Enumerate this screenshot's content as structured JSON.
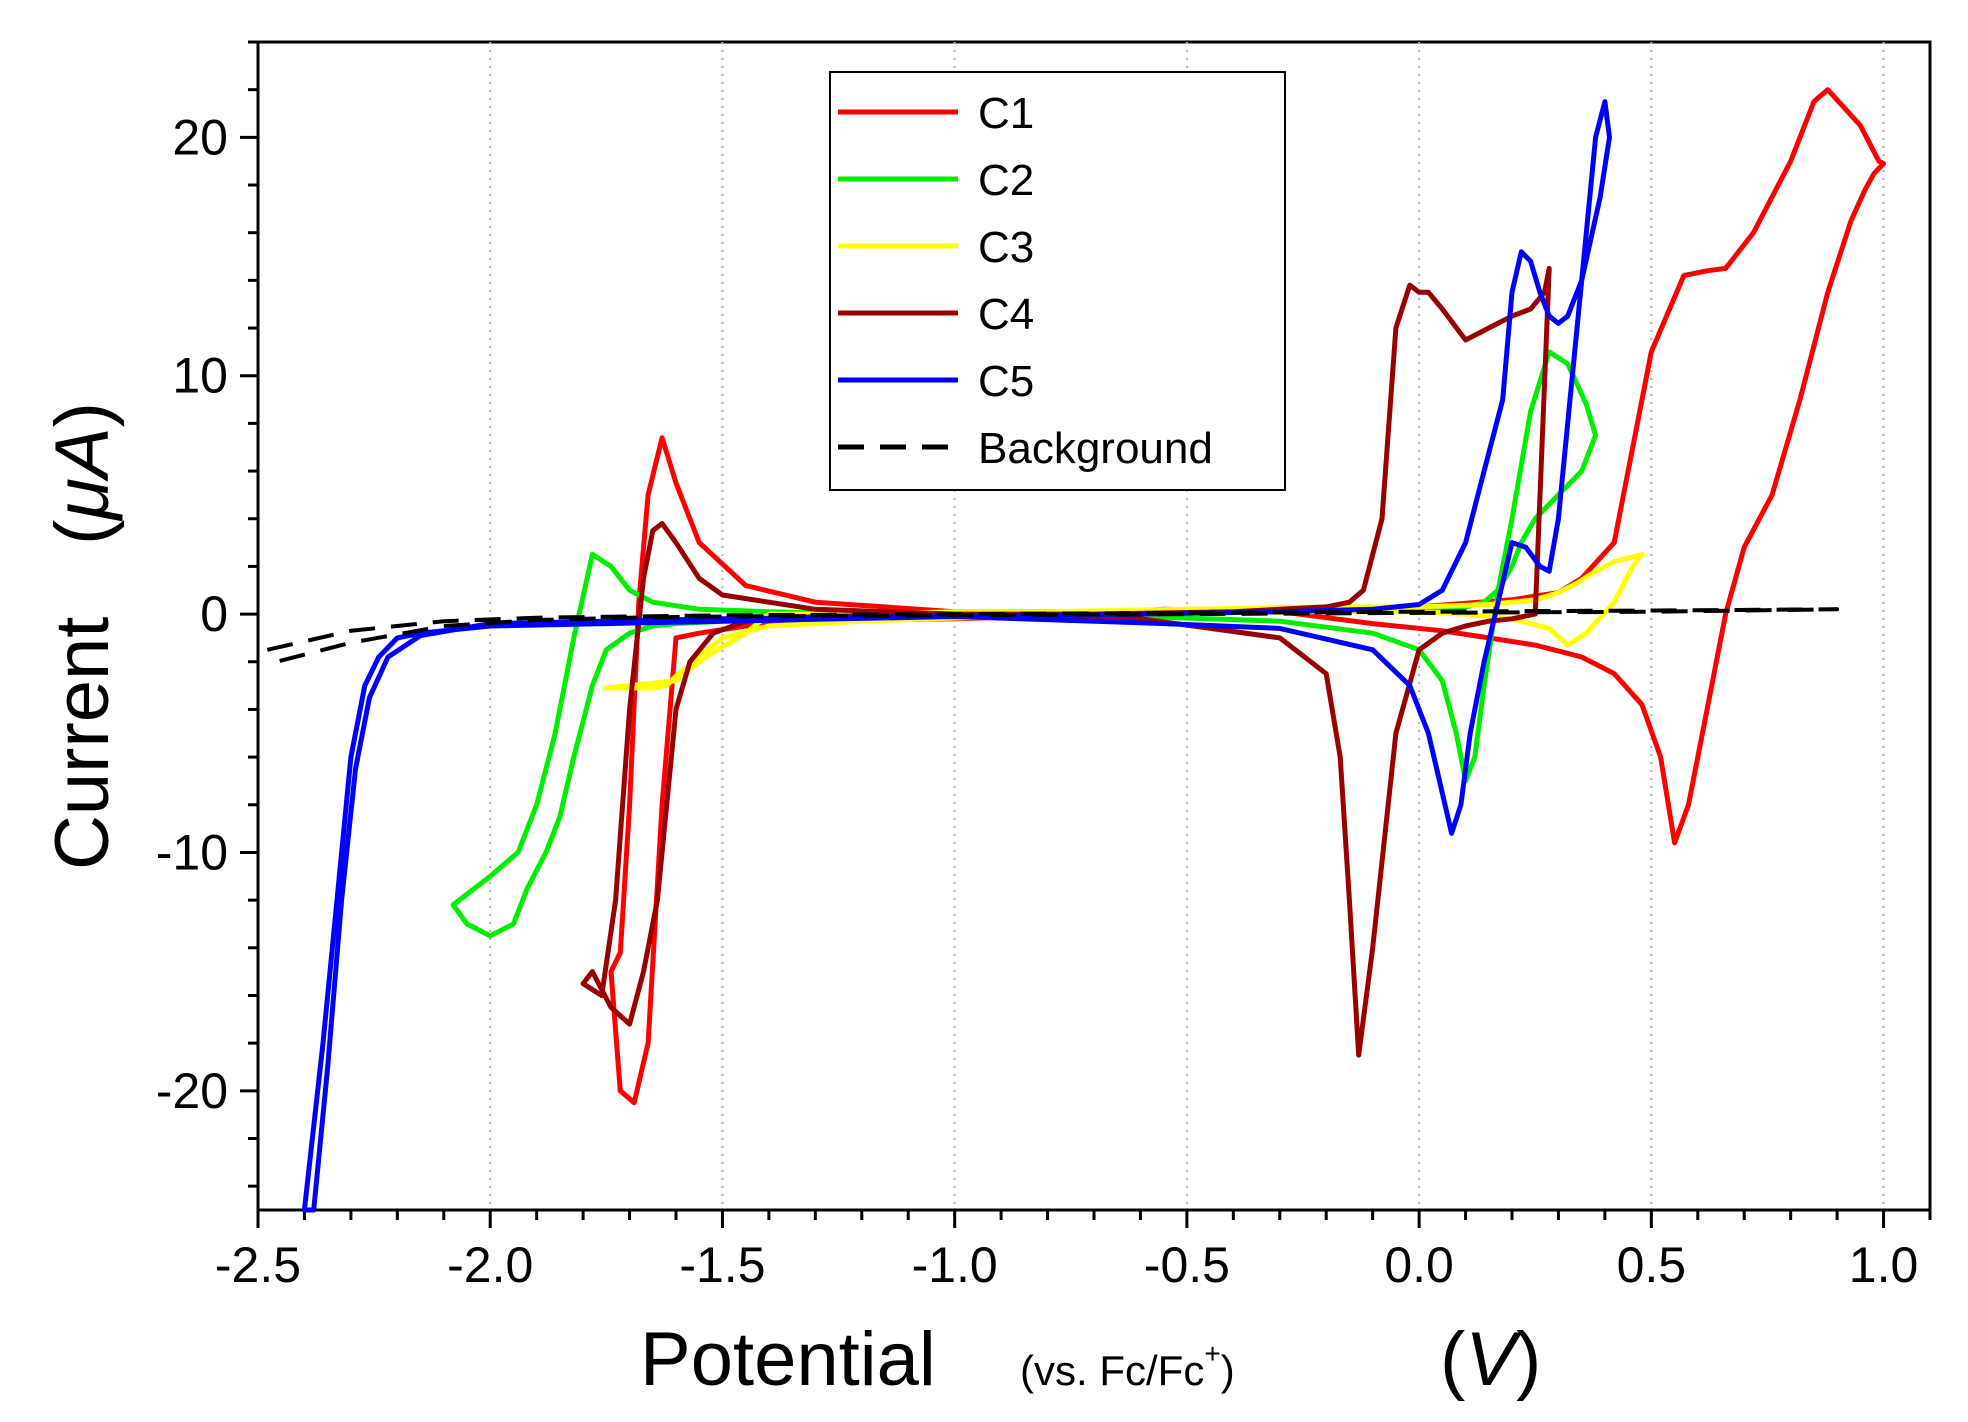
{
  "chart_data": {
    "type": "line",
    "title": "",
    "xlabel": {
      "main": "Potential",
      "ref": "vs. Fc/Fc",
      "ref_sup": "+",
      "unit": "V"
    },
    "ylabel": {
      "main": "Current",
      "unit": "μA"
    },
    "xlim": [
      -2.5,
      1.1
    ],
    "ylim": [
      -25,
      24
    ],
    "xticks": [
      -2.5,
      -2.0,
      -1.5,
      -1.0,
      -0.5,
      0.0,
      0.5,
      1.0
    ],
    "xtick_labels": [
      "-2.5",
      "-2.0",
      "-1.5",
      "-1.0",
      "-0.5",
      "0.0",
      "0.5",
      "1.0"
    ],
    "yticks": [
      -20,
      -10,
      0,
      10,
      20
    ],
    "ytick_labels": [
      "-20",
      "-10",
      "0",
      "10",
      "20"
    ],
    "grid": "vertical dotted",
    "legend_position": "top-center",
    "series": [
      {
        "name": "C1",
        "color": "#ff0000",
        "dash": "solid",
        "x": [
          -0.55,
          -0.3,
          -0.1,
          0.05,
          0.15,
          0.25,
          0.35,
          0.42,
          0.48,
          0.52,
          0.55,
          0.58,
          0.62,
          0.66,
          0.7,
          0.76,
          0.82,
          0.88,
          0.93,
          0.96,
          0.98,
          1.0,
          0.99,
          0.95,
          0.88,
          0.85,
          0.8,
          0.72,
          0.66,
          0.62,
          0.57,
          0.5,
          0.42,
          0.35,
          0.3,
          0.2,
          0.0,
          -0.3,
          -0.7,
          -1.0,
          -1.3,
          -1.45,
          -1.55,
          -1.6,
          -1.63,
          -1.66,
          -1.68,
          -1.7,
          -1.72,
          -1.74,
          -1.72,
          -1.69,
          -1.66,
          -1.63,
          -1.6,
          -1.55,
          -1.45,
          -1.3,
          -1.0,
          -0.7,
          -0.55
        ],
        "y": [
          0.2,
          0.1,
          -0.4,
          -0.7,
          -1.0,
          -1.3,
          -1.8,
          -2.5,
          -3.8,
          -6.0,
          -9.6,
          -8.0,
          -4.0,
          0.0,
          2.8,
          5.0,
          9.0,
          13.5,
          16.5,
          17.8,
          18.5,
          18.9,
          19.0,
          20.5,
          22.0,
          21.5,
          19.0,
          16.0,
          14.5,
          14.4,
          14.2,
          11.0,
          3.0,
          1.5,
          0.9,
          0.6,
          0.3,
          0.2,
          0.1,
          0.1,
          0.5,
          1.2,
          3.0,
          5.5,
          7.4,
          5.0,
          0.5,
          -8.0,
          -14.2,
          -15.0,
          -20.0,
          -20.5,
          -18.0,
          -8.0,
          -1.0,
          -0.8,
          -0.5,
          -0.3,
          -0.2,
          0.0,
          0.2
        ]
      },
      {
        "name": "C2",
        "color": "#00ee00",
        "dash": "solid",
        "x": [
          -0.6,
          -0.3,
          -0.1,
          0.0,
          0.05,
          0.08,
          0.1,
          0.12,
          0.14,
          0.17,
          0.2,
          0.24,
          0.28,
          0.32,
          0.36,
          0.38,
          0.35,
          0.3,
          0.25,
          0.22,
          0.2,
          0.17,
          0.14,
          0.1,
          0.0,
          -0.3,
          -0.7,
          -1.0,
          -1.3,
          -1.5,
          -1.6,
          -1.65,
          -1.7,
          -1.75,
          -1.78,
          -1.82,
          -1.85,
          -1.88,
          -1.92,
          -1.95,
          -2.0,
          -2.05,
          -2.08,
          -2.0,
          -1.94,
          -1.9,
          -1.86,
          -1.82,
          -1.78,
          -1.74,
          -1.7,
          -1.65,
          -1.55,
          -1.4,
          -1.2,
          -1.0,
          -0.6
        ],
        "y": [
          -0.1,
          -0.3,
          -0.8,
          -1.5,
          -2.8,
          -5.0,
          -7.0,
          -6.0,
          -3.0,
          1.0,
          4.0,
          8.5,
          11.0,
          10.5,
          8.8,
          7.5,
          6.0,
          5.0,
          4.0,
          3.0,
          2.0,
          1.0,
          0.5,
          0.3,
          0.2,
          0.1,
          0.0,
          -0.1,
          -0.2,
          -0.3,
          -0.4,
          -0.5,
          -0.8,
          -1.5,
          -3.0,
          -6.0,
          -8.5,
          -10.0,
          -11.5,
          -13.0,
          -13.5,
          -13.0,
          -12.2,
          -11.0,
          -10.0,
          -8.0,
          -5.0,
          -1.0,
          2.5,
          2.0,
          1.0,
          0.5,
          0.2,
          0.1,
          0.0,
          0.0,
          -0.1
        ]
      },
      {
        "name": "C3",
        "color": "#ffff00",
        "dash": "solid",
        "x": [
          -1.4,
          -1.2,
          -1.0,
          -0.8,
          -0.5,
          -0.2,
          0.0,
          0.15,
          0.25,
          0.3,
          0.34,
          0.38,
          0.42,
          0.46,
          0.48,
          0.46,
          0.42,
          0.36,
          0.32,
          0.28,
          0.2,
          0.1,
          0.0,
          -0.3,
          -0.6,
          -0.9,
          -1.2,
          -1.4,
          -1.5,
          -1.55,
          -1.6,
          -1.62,
          -1.65,
          -1.7,
          -1.75,
          -1.7,
          -1.65,
          -1.6,
          -1.57,
          -1.52,
          -1.45,
          -1.4
        ],
        "y": [
          0.0,
          0.0,
          0.1,
          0.1,
          0.2,
          0.3,
          0.3,
          0.4,
          0.6,
          0.9,
          1.3,
          1.8,
          2.2,
          2.4,
          2.5,
          2.0,
          0.5,
          -0.8,
          -1.3,
          -0.6,
          -0.2,
          0.0,
          0.1,
          0.1,
          0.0,
          -0.1,
          -0.3,
          -0.5,
          -1.0,
          -1.8,
          -2.6,
          -3.0,
          -3.1,
          -3.1,
          -3.1,
          -3.0,
          -2.9,
          -2.8,
          -2.3,
          -1.6,
          -0.8,
          0.0
        ]
      },
      {
        "name": "C4",
        "color": "#990000",
        "dash": "solid",
        "x": [
          -1.0,
          -0.6,
          -0.3,
          -0.2,
          -0.17,
          -0.15,
          -0.13,
          -0.1,
          -0.05,
          0.0,
          0.05,
          0.1,
          0.15,
          0.2,
          0.25,
          0.28,
          0.27,
          0.24,
          0.2,
          0.15,
          0.1,
          0.05,
          0.02,
          0.0,
          -0.02,
          -0.05,
          -0.08,
          -0.12,
          -0.15,
          -0.2,
          -0.4,
          -0.7,
          -1.0,
          -1.3,
          -1.5,
          -1.55,
          -1.6,
          -1.63,
          -1.65,
          -1.67,
          -1.7,
          -1.73,
          -1.76,
          -1.8,
          -1.78,
          -1.74,
          -1.7,
          -1.67,
          -1.64,
          -1.62,
          -1.6,
          -1.57,
          -1.52,
          -1.45,
          -1.3,
          -1.0
        ],
        "y": [
          0.0,
          -0.2,
          -1.0,
          -2.5,
          -6.0,
          -12.0,
          -18.5,
          -14.0,
          -5.0,
          -1.5,
          -0.8,
          -0.5,
          -0.3,
          -0.2,
          0.0,
          14.5,
          13.5,
          12.8,
          12.5,
          12.0,
          11.5,
          12.8,
          13.5,
          13.5,
          13.8,
          12.0,
          4.0,
          1.0,
          0.5,
          0.3,
          0.1,
          0.0,
          0.0,
          0.2,
          0.8,
          1.5,
          3.0,
          3.8,
          3.5,
          1.5,
          -4.0,
          -12.0,
          -16.0,
          -15.5,
          -15.0,
          -16.5,
          -17.2,
          -15.0,
          -12.0,
          -8.0,
          -4.0,
          -2.0,
          -0.8,
          -0.3,
          -0.1,
          0.0
        ]
      },
      {
        "name": "C5",
        "color": "#0000ff",
        "dash": "solid",
        "x": [
          -0.55,
          -0.3,
          -0.1,
          -0.02,
          0.02,
          0.05,
          0.07,
          0.09,
          0.11,
          0.14,
          0.17,
          0.2,
          0.23,
          0.26,
          0.28,
          0.3,
          0.32,
          0.35,
          0.38,
          0.4,
          0.41,
          0.39,
          0.35,
          0.32,
          0.3,
          0.28,
          0.26,
          0.24,
          0.22,
          0.2,
          0.18,
          0.14,
          0.1,
          0.05,
          0.0,
          -0.1,
          -0.3,
          -0.6,
          -1.0,
          -1.5,
          -2.0,
          -2.15,
          -2.22,
          -2.26,
          -2.29,
          -2.32,
          -2.35,
          -2.38,
          -2.4,
          -2.36,
          -2.33,
          -2.3,
          -2.27,
          -2.24,
          -2.2,
          -2.15,
          -2.0,
          -1.5,
          -1.0,
          -0.55
        ],
        "y": [
          -0.4,
          -0.6,
          -1.5,
          -3.0,
          -5.0,
          -7.5,
          -9.2,
          -8.0,
          -5.0,
          -2.0,
          0.5,
          3.0,
          2.8,
          2.0,
          1.8,
          4.0,
          8.0,
          14.0,
          20.0,
          21.5,
          20.0,
          17.5,
          14.0,
          12.5,
          12.2,
          12.5,
          13.5,
          14.8,
          15.2,
          13.5,
          9.0,
          6.0,
          3.0,
          1.0,
          0.4,
          0.2,
          0.1,
          0.0,
          -0.1,
          -0.2,
          -0.4,
          -0.9,
          -1.8,
          -3.5,
          -6.5,
          -12.0,
          -19.0,
          -25.0,
          -25.0,
          -18.0,
          -12.0,
          -6.0,
          -3.0,
          -1.8,
          -1.0,
          -0.8,
          -0.5,
          -0.3,
          -0.1,
          -0.4
        ]
      },
      {
        "name": "Background",
        "color": "#000000",
        "dash": "dashed",
        "x": [
          -2.48,
          -2.3,
          -2.1,
          -1.9,
          -1.7,
          -1.5,
          -1.0,
          -0.5,
          0.0,
          0.5,
          0.9,
          0.5,
          0.0,
          -0.5,
          -1.0,
          -1.5,
          -1.7,
          -1.9,
          -2.1,
          -2.3,
          -2.48
        ],
        "y": [
          -1.5,
          -0.7,
          -0.3,
          -0.15,
          -0.1,
          -0.05,
          0.0,
          0.05,
          0.1,
          0.15,
          0.2,
          0.1,
          0.05,
          0.0,
          -0.05,
          -0.1,
          -0.15,
          -0.25,
          -0.5,
          -1.2,
          -2.1
        ]
      }
    ]
  }
}
